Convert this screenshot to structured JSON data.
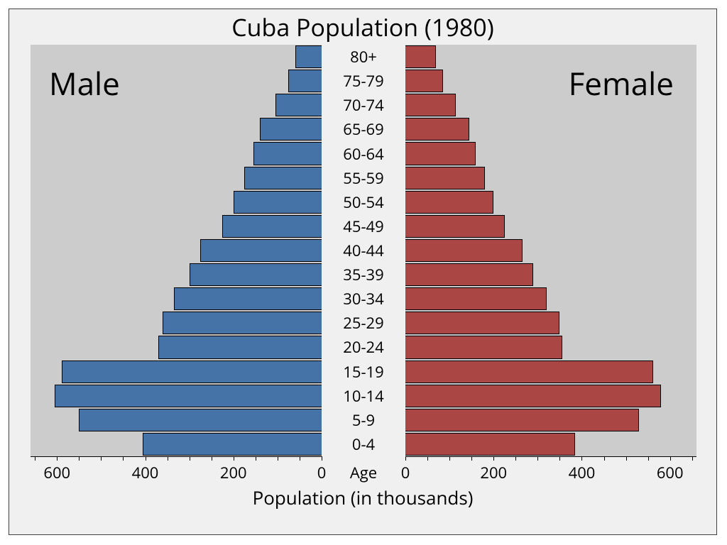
{
  "chart": {
    "type": "population-pyramid",
    "title": "Cuba Population (1980)",
    "title_fontsize": 34,
    "left_label": "Male",
    "right_label": "Female",
    "side_label_fontsize": 44,
    "center_axis_title": "Age",
    "x_axis_label": "Population (in thousands)",
    "x_axis_label_fontsize": 26,
    "background_color": "#f0f0f0",
    "plot_background_color": "#cccccc",
    "border_color": "#404040",
    "male_color": "#4573a7",
    "female_color": "#aa4644",
    "bar_border_color": "#000000",
    "tick_label_fontsize": 22,
    "age_label_fontsize": 22,
    "xlim": [
      0,
      660
    ],
    "major_tick_step": 200,
    "minor_tick_step": 50,
    "major_ticks": [
      0,
      200,
      400,
      600
    ],
    "age_groups": [
      {
        "label": "80+",
        "male": 60,
        "female": 70
      },
      {
        "label": "75-79",
        "male": 75,
        "female": 85
      },
      {
        "label": "70-74",
        "male": 105,
        "female": 115
      },
      {
        "label": "65-69",
        "male": 140,
        "female": 145
      },
      {
        "label": "60-64",
        "male": 155,
        "female": 160
      },
      {
        "label": "55-59",
        "male": 175,
        "female": 180
      },
      {
        "label": "50-54",
        "male": 200,
        "female": 200
      },
      {
        "label": "45-49",
        "male": 225,
        "female": 225
      },
      {
        "label": "40-44",
        "male": 275,
        "female": 265
      },
      {
        "label": "35-39",
        "male": 300,
        "female": 290
      },
      {
        "label": "30-34",
        "male": 335,
        "female": 320
      },
      {
        "label": "25-29",
        "male": 360,
        "female": 350
      },
      {
        "label": "20-24",
        "male": 370,
        "female": 355
      },
      {
        "label": "15-19",
        "male": 590,
        "female": 562
      },
      {
        "label": "10-14",
        "male": 605,
        "female": 580
      },
      {
        "label": "5-9",
        "male": 550,
        "female": 530
      },
      {
        "label": "0-4",
        "male": 405,
        "female": 385
      }
    ]
  }
}
